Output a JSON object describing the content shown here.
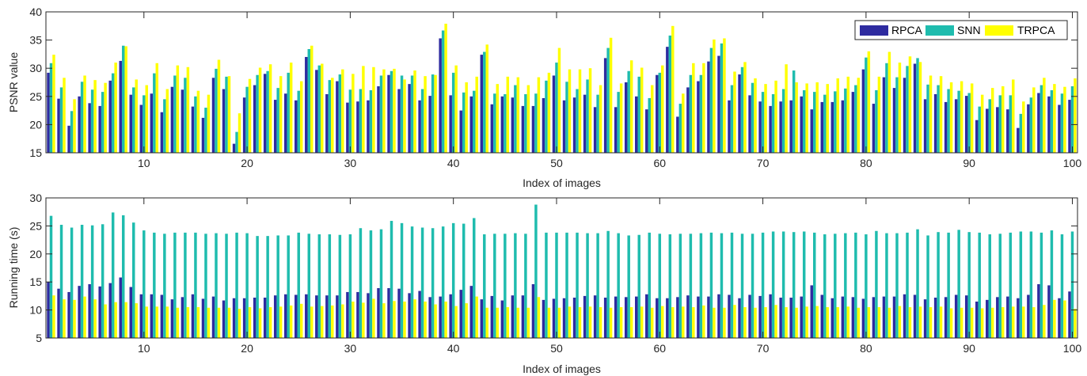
{
  "colors": {
    "RPCA": "#2e2ba0",
    "SNN": "#1fbcae",
    "TRPCA": "#ffff00",
    "axis": "#262626",
    "grid": "#d9d9d9"
  },
  "chart_data": [
    {
      "type": "bar",
      "xlabel": "Index of images",
      "ylabel": "PSNR value",
      "ylim": [
        15,
        40
      ],
      "yticks": [
        15,
        20,
        25,
        30,
        35,
        40
      ],
      "xlim": [
        0.5,
        100.5
      ],
      "xticks": [
        10,
        20,
        30,
        40,
        50,
        60,
        70,
        80,
        90,
        100
      ],
      "legend": {
        "position": "top-right",
        "entries": [
          "RPCA",
          "SNN",
          "TRPCA"
        ]
      },
      "x": [
        1,
        2,
        3,
        4,
        5,
        6,
        7,
        8,
        9,
        10,
        11,
        12,
        13,
        14,
        15,
        16,
        17,
        18,
        19,
        20,
        21,
        22,
        23,
        24,
        25,
        26,
        27,
        28,
        29,
        30,
        31,
        32,
        33,
        34,
        35,
        36,
        37,
        38,
        39,
        40,
        41,
        42,
        43,
        44,
        45,
        46,
        47,
        48,
        49,
        50,
        51,
        52,
        53,
        54,
        55,
        56,
        57,
        58,
        59,
        60,
        61,
        62,
        63,
        64,
        65,
        66,
        67,
        68,
        69,
        70,
        71,
        72,
        73,
        74,
        75,
        76,
        77,
        78,
        79,
        80,
        81,
        82,
        83,
        84,
        85,
        86,
        87,
        88,
        89,
        90,
        91,
        92,
        93,
        94,
        95,
        96,
        97,
        98,
        99,
        100
      ],
      "series": [
        {
          "name": "RPCA",
          "values": [
            29.2,
            24.6,
            19.8,
            25.0,
            23.8,
            23.3,
            27.8,
            31.3,
            25.3,
            23.5,
            25.5,
            22.2,
            26.7,
            26.2,
            23.2,
            21.2,
            28.3,
            26.3,
            16.6,
            24.8,
            27.0,
            29.0,
            24.4,
            25.5,
            24.3,
            32.0,
            29.7,
            25.4,
            27.7,
            23.9,
            24.1,
            24.3,
            26.8,
            28.8,
            26.3,
            27.2,
            24.3,
            25.1,
            35.3,
            25.2,
            22.5,
            25.0,
            32.4,
            23.6,
            25.0,
            24.8,
            23.3,
            23.3,
            24.7,
            28.7,
            24.3,
            24.8,
            25.3,
            23.1,
            31.8,
            23.1,
            27.5,
            25.0,
            22.7,
            28.8,
            33.8,
            21.4,
            26.6,
            27.7,
            31.2,
            32.2,
            24.3,
            28.9,
            25.2,
            24.1,
            23.3,
            24.1,
            24.3,
            25.0,
            22.7,
            24.0,
            24.0,
            24.3,
            25.8,
            29.8,
            23.7,
            28.4,
            26.5,
            28.3,
            30.8,
            24.5,
            25.4,
            24.0,
            24.5,
            25.1,
            20.8,
            22.8,
            23.1,
            22.7,
            19.4,
            23.6,
            25.6,
            25.0,
            23.5,
            24.4
          ]
        },
        {
          "name": "SNN",
          "values": [
            30.9,
            26.6,
            22.4,
            27.6,
            26.2,
            25.8,
            29.1,
            34.0,
            26.6,
            25.2,
            29.1,
            24.5,
            28.7,
            28.3,
            25.0,
            23.0,
            29.9,
            28.5,
            18.7,
            26.7,
            28.8,
            29.5,
            26.5,
            29.2,
            26.0,
            33.4,
            30.5,
            27.9,
            28.9,
            26.2,
            26.3,
            26.1,
            28.7,
            29.5,
            28.7,
            28.7,
            26.3,
            28.9,
            36.7,
            29.2,
            25.7,
            26.0,
            32.9,
            25.5,
            25.4,
            27.0,
            25.4,
            25.5,
            27.8,
            31.0,
            27.6,
            26.3,
            28.0,
            25.3,
            33.6,
            25.8,
            29.5,
            28.5,
            24.7,
            29.2,
            35.8,
            23.7,
            28.8,
            28.8,
            33.6,
            34.4,
            27.0,
            30.2,
            27.4,
            25.8,
            25.4,
            26.3,
            29.6,
            26.1,
            25.8,
            25.3,
            25.9,
            26.4,
            27.0,
            31.9,
            26.1,
            30.9,
            28.4,
            30.4,
            31.8,
            27.1,
            27.0,
            26.3,
            26.0,
            25.6,
            23.2,
            24.5,
            25.2,
            25.2,
            21.9,
            24.8,
            27.0,
            26.1,
            25.5,
            26.8
          ]
        },
        {
          "name": "TRPCA",
          "values": [
            32.4,
            28.3,
            24.5,
            28.7,
            27.9,
            27.4,
            31.0,
            33.9,
            28.0,
            27.0,
            30.9,
            26.3,
            30.5,
            30.2,
            26.0,
            25.3,
            31.5,
            28.6,
            22.0,
            28.1,
            30.1,
            30.7,
            28.6,
            31.0,
            27.7,
            34.0,
            30.8,
            28.3,
            29.8,
            29.0,
            30.4,
            30.2,
            29.8,
            29.9,
            28.0,
            29.6,
            28.6,
            28.8,
            37.9,
            30.5,
            27.5,
            28.5,
            34.2,
            27.2,
            28.5,
            28.4,
            27.0,
            28.4,
            29.2,
            33.6,
            29.8,
            29.8,
            30.0,
            27.0,
            35.4,
            27.3,
            31.4,
            30.1,
            27.0,
            30.5,
            37.5,
            25.5,
            30.9,
            30.9,
            35.1,
            35.3,
            29.4,
            31.1,
            28.2,
            27.2,
            27.8,
            30.7,
            27.5,
            27.3,
            27.5,
            27.2,
            28.2,
            28.5,
            28.3,
            33.0,
            28.5,
            32.9,
            31.0,
            32.1,
            31.1,
            28.7,
            28.6,
            27.5,
            27.7,
            27.3,
            25.3,
            26.5,
            26.8,
            28.0,
            24.1,
            26.6,
            28.3,
            27.2,
            26.7,
            28.2
          ]
        }
      ]
    },
    {
      "type": "bar",
      "xlabel": "Index of images",
      "ylabel": "Running time (s)",
      "ylim": [
        5,
        30
      ],
      "yticks": [
        5,
        10,
        15,
        20,
        25,
        30
      ],
      "xlim": [
        0.5,
        100.5
      ],
      "xticks": [
        10,
        20,
        30,
        40,
        50,
        60,
        70,
        80,
        90,
        100
      ],
      "x": [
        1,
        2,
        3,
        4,
        5,
        6,
        7,
        8,
        9,
        10,
        11,
        12,
        13,
        14,
        15,
        16,
        17,
        18,
        19,
        20,
        21,
        22,
        23,
        24,
        25,
        26,
        27,
        28,
        29,
        30,
        31,
        32,
        33,
        34,
        35,
        36,
        37,
        38,
        39,
        40,
        41,
        42,
        43,
        44,
        45,
        46,
        47,
        48,
        49,
        50,
        51,
        52,
        53,
        54,
        55,
        56,
        57,
        58,
        59,
        60,
        61,
        62,
        63,
        64,
        65,
        66,
        67,
        68,
        69,
        70,
        71,
        72,
        73,
        74,
        75,
        76,
        77,
        78,
        79,
        80,
        81,
        82,
        83,
        84,
        85,
        86,
        87,
        88,
        89,
        90,
        91,
        92,
        93,
        94,
        95,
        96,
        97,
        98,
        99,
        100
      ],
      "series": [
        {
          "name": "RPCA",
          "values": [
            15.0,
            13.8,
            13.2,
            14.3,
            14.6,
            14.2,
            14.8,
            15.8,
            14.1,
            12.8,
            12.8,
            12.7,
            11.9,
            12.3,
            12.8,
            12.0,
            12.4,
            11.7,
            12.1,
            12.1,
            12.2,
            12.2,
            12.6,
            12.8,
            12.7,
            12.8,
            12.6,
            12.6,
            12.6,
            13.2,
            13.2,
            13.0,
            13.9,
            13.9,
            13.8,
            13.0,
            13.4,
            12.3,
            12.4,
            12.8,
            13.6,
            14.3,
            11.9,
            12.5,
            11.7,
            12.6,
            12.6,
            14.6,
            11.8,
            12.0,
            12.1,
            12.2,
            12.5,
            12.6,
            12.2,
            12.4,
            12.3,
            12.4,
            12.8,
            12.1,
            12.1,
            12.3,
            12.6,
            12.4,
            12.4,
            12.8,
            12.7,
            12.1,
            12.7,
            12.5,
            12.8,
            12.2,
            12.2,
            12.4,
            14.4,
            12.7,
            12.1,
            12.4,
            12.3,
            12.0,
            12.3,
            12.4,
            12.4,
            12.8,
            12.7,
            11.9,
            12.2,
            12.3,
            12.7,
            12.6,
            11.5,
            11.8,
            12.3,
            12.4,
            12.1,
            12.7,
            14.6,
            14.4,
            12.1,
            13.3
          ]
        },
        {
          "name": "SNN",
          "values": [
            26.8,
            25.2,
            24.7,
            25.2,
            25.1,
            25.3,
            27.4,
            26.9,
            25.6,
            24.2,
            23.8,
            23.6,
            23.8,
            23.8,
            23.8,
            23.6,
            23.7,
            23.6,
            23.8,
            23.7,
            23.2,
            23.2,
            23.3,
            23.3,
            23.8,
            23.6,
            23.5,
            23.5,
            23.4,
            23.5,
            24.6,
            24.2,
            24.4,
            25.9,
            25.5,
            24.9,
            24.7,
            24.6,
            24.9,
            25.5,
            25.4,
            26.4,
            23.5,
            23.6,
            23.6,
            23.7,
            23.6,
            28.8,
            23.8,
            23.8,
            23.8,
            23.8,
            23.7,
            23.7,
            24.1,
            23.7,
            23.3,
            23.4,
            23.8,
            23.6,
            23.5,
            23.6,
            23.6,
            23.7,
            23.8,
            23.7,
            23.8,
            23.6,
            23.6,
            23.8,
            24.0,
            24.0,
            23.9,
            24.0,
            23.8,
            23.5,
            23.6,
            23.7,
            23.8,
            23.5,
            24.1,
            23.7,
            23.7,
            23.8,
            24.4,
            23.3,
            23.9,
            23.8,
            24.3,
            23.9,
            23.8,
            23.5,
            23.6,
            23.8,
            24.0,
            24.0,
            23.8,
            24.2,
            23.5,
            24.0
          ]
        },
        {
          "name": "TRPCA",
          "values": [
            12.6,
            11.9,
            11.8,
            12.4,
            11.9,
            11.0,
            11.4,
            11.4,
            11.2,
            10.6,
            10.6,
            10.6,
            10.4,
            10.5,
            10.5,
            10.4,
            10.4,
            10.4,
            10.2,
            10.5,
            10.3,
            10.5,
            10.6,
            10.8,
            11.1,
            10.6,
            10.7,
            10.8,
            11.0,
            11.5,
            11.3,
            12.0,
            11.2,
            11.6,
            11.5,
            11.9,
            11.5,
            11.0,
            11.5,
            10.7,
            11.2,
            12.4,
            10.4,
            10.4,
            10.5,
            10.4,
            10.4,
            12.3,
            10.4,
            10.4,
            10.6,
            10.5,
            10.6,
            10.5,
            10.4,
            10.5,
            10.5,
            10.6,
            10.4,
            10.7,
            10.5,
            10.6,
            10.5,
            10.8,
            10.4,
            10.4,
            10.9,
            10.5,
            10.4,
            10.5,
            10.9,
            10.5,
            10.4,
            10.6,
            10.7,
            10.5,
            10.5,
            10.6,
            10.4,
            10.5,
            10.5,
            10.4,
            10.7,
            10.5,
            10.6,
            10.5,
            10.6,
            10.3,
            10.4,
            10.4,
            10.3,
            10.4,
            10.5,
            10.6,
            10.6,
            10.5,
            10.9,
            11.8,
            11.7,
            10.2
          ]
        }
      ]
    }
  ]
}
